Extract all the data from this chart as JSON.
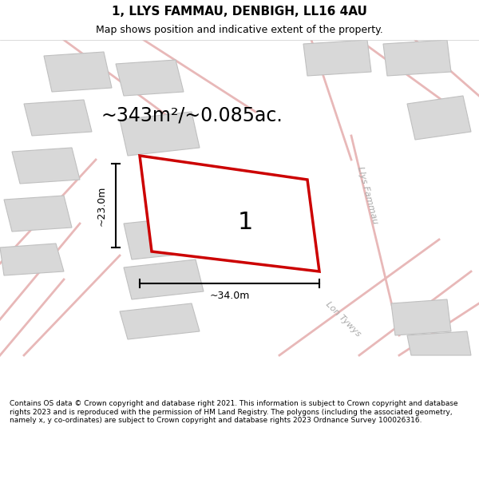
{
  "title_line1": "1, LLYS FAMMAU, DENBIGH, LL16 4AU",
  "title_line2": "Map shows position and indicative extent of the property.",
  "area_label": "~343m²/~0.085ac.",
  "dim_height": "~23.0m",
  "dim_width": "~34.0m",
  "plot_number": "1",
  "footer_text": "Contains OS data © Crown copyright and database right 2021. This information is subject to Crown copyright and database rights 2023 and is reproduced with the permission of HM Land Registry. The polygons (including the associated geometry, namely x, y co-ordinates) are subject to Crown copyright and database rights 2023 Ordnance Survey 100026316.",
  "bg_color": "#ffffff",
  "map_bg": "#f5f5f5",
  "building_fill": "#d8d8d8",
  "building_edge": "#c0c0c0",
  "road_color": "#e8b8b8",
  "plot_edge_color": "#cc0000",
  "plot_fill": "#ffffff",
  "dim_color": "#000000",
  "street_label_color": "#aaaaaa",
  "title_color": "#000000",
  "footer_color": "#000000",
  "map_xlim": [
    0,
    1
  ],
  "map_ylim": [
    0,
    1
  ]
}
